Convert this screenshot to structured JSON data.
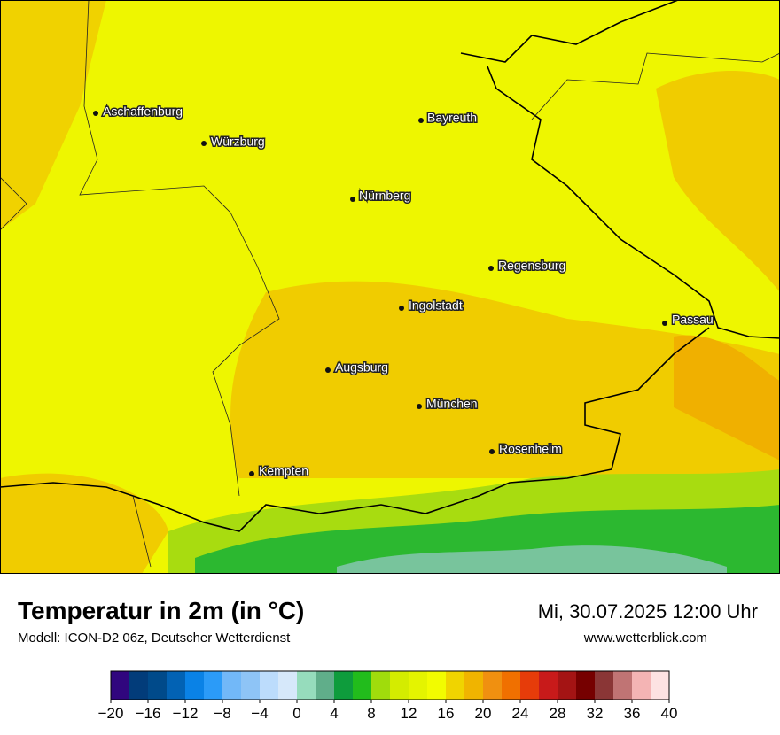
{
  "header": {
    "title": "Temperatur in 2m (in °C)",
    "subtitle": "Modell: ICON-D2 06z, Deutscher Wetterdienst",
    "datetime": "Mi, 30.07.2025 12:00 Uhr",
    "website": "www.wetterblick.com"
  },
  "map": {
    "cities": [
      "Aschaffenburg",
      "Würzburg",
      "Bayreuth",
      "Nürnberg",
      "Regensburg",
      "Ingolstadt",
      "Passau",
      "Augsburg",
      "München",
      "Rosenheim",
      "Kempten"
    ]
  },
  "colorbar": {
    "range": [
      -20,
      40
    ],
    "ticks": [
      {
        "value": -20,
        "label": "−20"
      },
      {
        "value": -16,
        "label": "−16"
      },
      {
        "value": -12,
        "label": "−12"
      },
      {
        "value": -8,
        "label": "−8"
      },
      {
        "value": -4,
        "label": "−4"
      },
      0,
      4,
      8,
      12,
      16,
      20,
      24,
      28,
      32,
      36,
      40
    ],
    "colors": [
      "#30067e",
      "#023c7a",
      "#004a8a",
      "#0262b4",
      "#0a82e6",
      "#2b9bf8",
      "#72b8f8",
      "#8ec4f6",
      "#bcdcfc",
      "#d6e8fa",
      "#96dcbc",
      "#60ae8a",
      "#0e9c3c",
      "#22bc1c",
      "#a0dc0c",
      "#d4ec00",
      "#e4f400",
      "#f2fc00",
      "#f0d400",
      "#f0b400",
      "#f09010",
      "#f07000",
      "#e63c0a",
      "#c81a1a",
      "#a41414",
      "#760000",
      "#8a3636",
      "#c07474",
      "#f4b4b4",
      "#fde2e2"
    ]
  }
}
